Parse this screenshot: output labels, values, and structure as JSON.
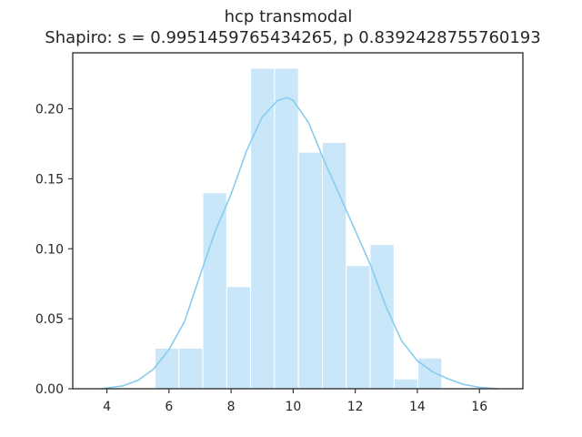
{
  "chart_data": {
    "type": "bar",
    "title_line1": "hcp transmodal",
    "title_line2": "Shapiro: s = 0.9951459765434265, p 0.8392428755760193",
    "xlabel": "",
    "ylabel": "",
    "xlim": [
      2.9,
      17.4
    ],
    "ylim": [
      0.0,
      0.24
    ],
    "x_ticks": [
      4,
      6,
      8,
      10,
      12,
      14,
      16
    ],
    "y_ticks": [
      0.0,
      0.05,
      0.1,
      0.15,
      0.2
    ],
    "y_tick_labels": [
      "0.00",
      "0.05",
      "0.10",
      "0.15",
      "0.20"
    ],
    "bins": [
      {
        "x0": 5.55,
        "x1": 6.32,
        "value": 0.029
      },
      {
        "x0": 6.32,
        "x1": 7.09,
        "value": 0.029
      },
      {
        "x0": 7.09,
        "x1": 7.86,
        "value": 0.14
      },
      {
        "x0": 7.86,
        "x1": 8.63,
        "value": 0.073
      },
      {
        "x0": 8.63,
        "x1": 9.4,
        "value": 0.229
      },
      {
        "x0": 9.4,
        "x1": 10.17,
        "value": 0.229
      },
      {
        "x0": 10.17,
        "x1": 10.94,
        "value": 0.169
      },
      {
        "x0": 10.94,
        "x1": 11.71,
        "value": 0.176
      },
      {
        "x0": 11.71,
        "x1": 12.48,
        "value": 0.088
      },
      {
        "x0": 12.48,
        "x1": 13.25,
        "value": 0.103
      },
      {
        "x0": 13.25,
        "x1": 14.02,
        "value": 0.007
      },
      {
        "x0": 14.02,
        "x1": 14.79,
        "value": 0.022
      }
    ],
    "kde": {
      "x": [
        3.8,
        4.5,
        5.0,
        5.5,
        6.0,
        6.5,
        7.0,
        7.5,
        8.0,
        8.5,
        9.0,
        9.5,
        9.8,
        10.0,
        10.5,
        11.0,
        11.5,
        12.0,
        12.5,
        13.0,
        13.5,
        14.0,
        14.5,
        15.0,
        15.5,
        16.0,
        16.6
      ],
      "y": [
        0.0,
        0.002,
        0.006,
        0.014,
        0.028,
        0.048,
        0.081,
        0.113,
        0.139,
        0.17,
        0.194,
        0.206,
        0.208,
        0.206,
        0.19,
        0.163,
        0.138,
        0.113,
        0.088,
        0.058,
        0.034,
        0.02,
        0.012,
        0.007,
        0.003,
        0.001,
        0.0
      ]
    },
    "grid": false,
    "colors": {
      "bar_fill": "#c9e7f9",
      "bar_edge": "#ffffff",
      "kde_line": "#87cdee",
      "axis": "#262626",
      "text": "#262626"
    }
  }
}
